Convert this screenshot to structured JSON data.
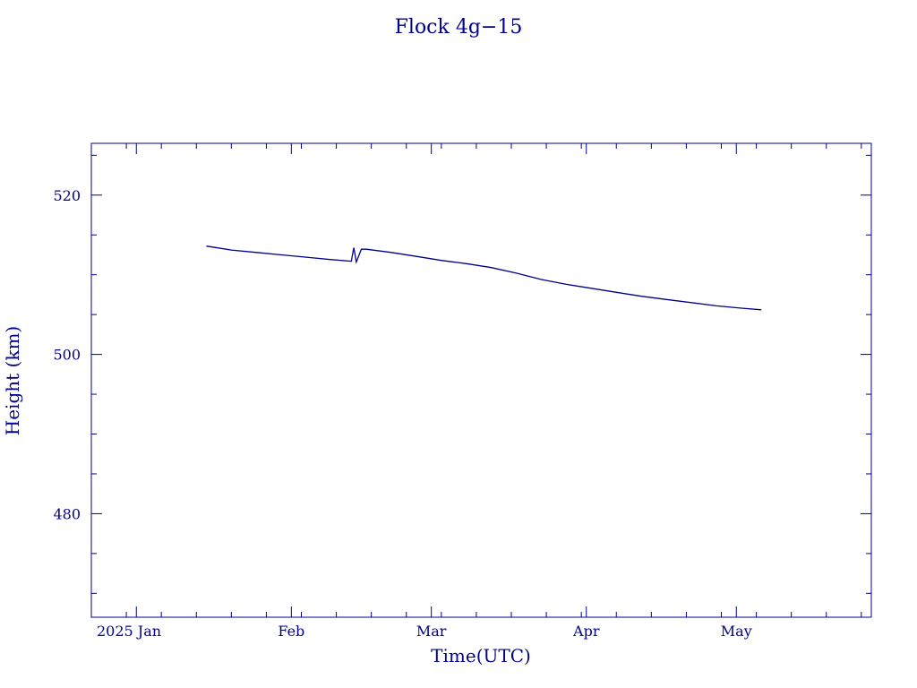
{
  "chart_data": {
    "type": "line",
    "title": "Flock 4g−15",
    "xlabel": "Time(UTC)",
    "ylabel": "Height (km)",
    "x_tick_labels": [
      "2025 Jan",
      "Feb",
      "Mar",
      "Apr",
      "May"
    ],
    "y_tick_labels": [
      "480",
      "500",
      "520"
    ],
    "x_ticks": [
      "2025-01-01",
      "2025-02-01",
      "2025-03-01",
      "2025-04-01",
      "2025-05-01"
    ],
    "y_ticks": [
      480,
      500,
      520
    ],
    "xlim": [
      "2024-12-23",
      "2025-05-28"
    ],
    "ylim": [
      467,
      526.5
    ],
    "grid": false,
    "color": "#00008b",
    "series": [
      {
        "x": [
          "2025-01-15",
          "2025-01-20",
          "2025-01-25",
          "2025-01-30",
          "2025-02-04",
          "2025-02-09",
          "2025-02-13",
          "2025-02-13T12:00",
          "2025-02-14",
          "2025-02-14T12:00",
          "2025-02-15",
          "2025-02-16",
          "2025-02-21",
          "2025-02-26",
          "2025-03-03",
          "2025-03-08",
          "2025-03-13",
          "2025-03-18",
          "2025-03-23",
          "2025-03-28",
          "2025-04-02",
          "2025-04-07",
          "2025-04-12",
          "2025-04-17",
          "2025-04-22",
          "2025-04-27",
          "2025-05-02",
          "2025-05-06"
        ],
        "y": [
          513.6,
          513.1,
          512.8,
          512.5,
          512.2,
          511.9,
          511.7,
          513.4,
          511.6,
          512.4,
          513.2,
          513.2,
          512.8,
          512.3,
          511.8,
          511.4,
          510.9,
          510.2,
          509.4,
          508.8,
          508.3,
          507.8,
          507.3,
          506.9,
          506.5,
          506.1,
          505.8,
          505.6
        ]
      }
    ]
  }
}
